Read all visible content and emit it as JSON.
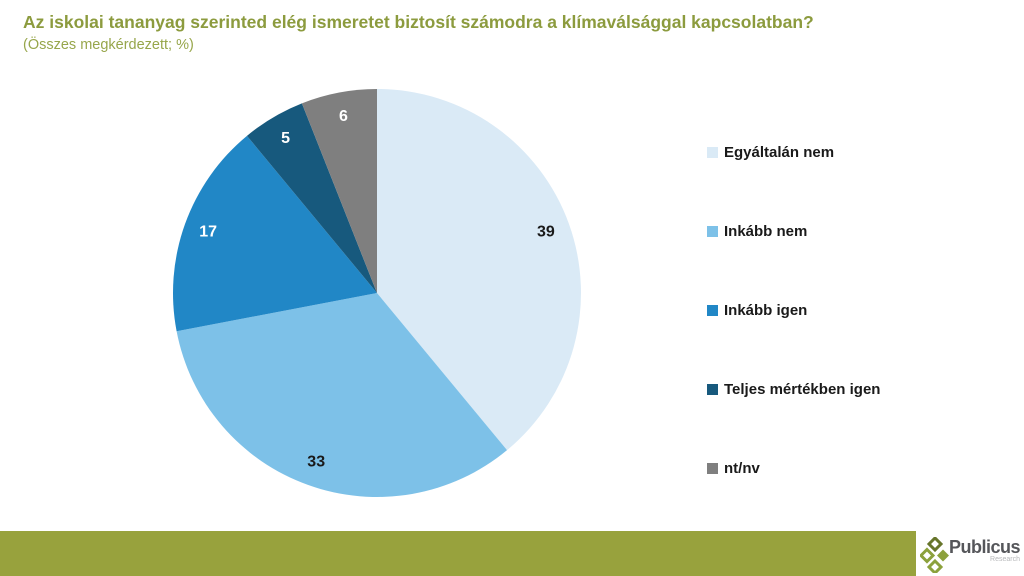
{
  "header": {
    "title": "Az iskolai tananyag szerinted elég ismeretet biztosít számodra a klímaválsággal kapcsolatban?",
    "subtitle": "(Összes megkérdezett; %)",
    "title_color": "#8C9B3E"
  },
  "chart_data": {
    "type": "pie",
    "title": "Az iskolai tananyag szerinted elég ismeretet biztosít számodra a klímaválsággal kapcsolatban?",
    "subtitle": "(Összes megkérdezett; %)",
    "unit": "%",
    "start_angle_deg": 0,
    "clockwise": true,
    "label_radius_fraction": 0.88,
    "legend_position": "right",
    "slices": [
      {
        "label": "Egyáltalán nem",
        "value": 39,
        "color": "#DAEAF6",
        "text_color": "#1a1a1a"
      },
      {
        "label": "Inkább nem",
        "value": 33,
        "color": "#7DC1E8",
        "text_color": "#1a1a1a"
      },
      {
        "label": "Inkább igen",
        "value": 17,
        "color": "#2187C6",
        "text_color": "#ffffff"
      },
      {
        "label": "Teljes mértékben igen",
        "value": 5,
        "color": "#17597D",
        "text_color": "#ffffff"
      },
      {
        "label": "nt/nv",
        "value": 6,
        "color": "#7F7F7F",
        "text_color": "#ffffff"
      }
    ]
  },
  "footer": {
    "bar_color": "#98A23D",
    "logo": {
      "name": "Publicus",
      "sub": "Research",
      "icon": "diamonds-icon",
      "icon_color": "#8CA13C",
      "icon_dark_color": "#67752B"
    }
  }
}
